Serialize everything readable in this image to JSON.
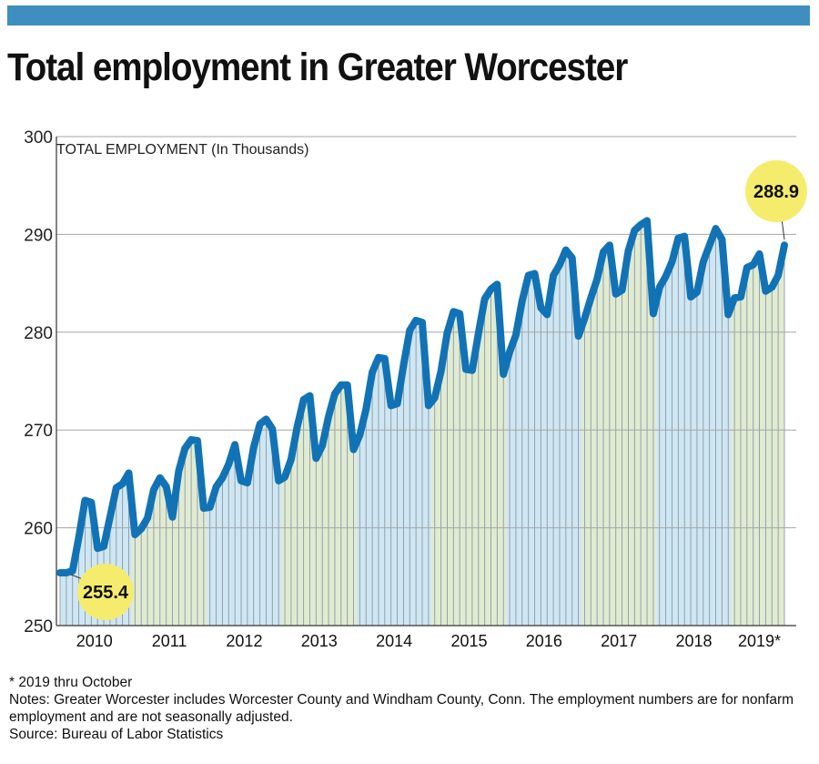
{
  "header": {
    "title": "Total employment in Greater Worcester",
    "accent_color": "#3e8fbf"
  },
  "chart_data": {
    "type": "area",
    "title": "Total employment in Greater Worcester",
    "ylabel": "TOTAL EMPLOYMENT (In Thousands)",
    "xlabel": "",
    "ylim": [
      250,
      300
    ],
    "yticks": [
      250,
      260,
      270,
      280,
      290,
      300
    ],
    "grid": true,
    "legend": "none",
    "line_color": "#1173b5",
    "band_colors": [
      "#cfe6f3",
      "#e0ebd2"
    ],
    "highlight_color": "#f5ec6e",
    "years": [
      "2010",
      "2011",
      "2012",
      "2013",
      "2014",
      "2015",
      "2016",
      "2017",
      "2018",
      "2019*"
    ],
    "series": [
      {
        "name": "Total employment",
        "values": [
          255.4,
          255.4,
          255.6,
          259.0,
          262.8,
          262.6,
          257.9,
          258.1,
          261.1,
          264.1,
          264.5,
          265.6,
          259.3,
          259.9,
          261.0,
          263.9,
          265.1,
          264.2,
          261.1,
          265.8,
          268.1,
          269.0,
          268.9,
          262.0,
          262.1,
          264.2,
          265.1,
          266.5,
          268.5,
          264.8,
          264.6,
          268.2,
          270.6,
          271.1,
          270.1,
          264.8,
          265.2,
          267.0,
          270.4,
          273.1,
          273.5,
          267.1,
          268.4,
          271.4,
          273.7,
          274.6,
          274.6,
          268.0,
          269.5,
          272.1,
          275.9,
          277.4,
          277.3,
          272.5,
          272.7,
          276.6,
          280.2,
          281.2,
          281.0,
          272.5,
          273.3,
          276.0,
          279.9,
          282.1,
          281.9,
          276.2,
          276.1,
          279.9,
          283.4,
          284.4,
          284.9,
          275.7,
          278.0,
          279.7,
          283.2,
          285.8,
          286.0,
          282.5,
          281.8,
          285.8,
          286.9,
          288.4,
          287.6,
          279.6,
          281.4,
          283.5,
          285.4,
          288.2,
          288.9,
          283.9,
          284.3,
          288.3,
          290.4,
          291.0,
          291.4,
          281.9,
          284.6,
          285.7,
          287.2,
          289.6,
          289.8,
          283.6,
          284.1,
          287.2,
          288.9,
          290.6,
          289.5,
          281.8,
          283.5,
          283.6,
          286.6,
          286.9,
          288.0,
          284.2,
          284.6,
          285.8,
          288.9
        ]
      }
    ],
    "annotations": [
      {
        "label": "255.4",
        "value": 255.4,
        "period": "Jan 2010"
      },
      {
        "label": "288.9",
        "value": 288.9,
        "period": "Oct 2019"
      }
    ]
  },
  "notes": {
    "footnote": "* 2019 thru October",
    "notes_text": "Notes: Greater Worcester includes Worcester County and Windham County, Conn. The employment numbers are for nonfarm employment and are not seasonally adjusted.",
    "source": "Source: Bureau of Labor Statistics"
  }
}
